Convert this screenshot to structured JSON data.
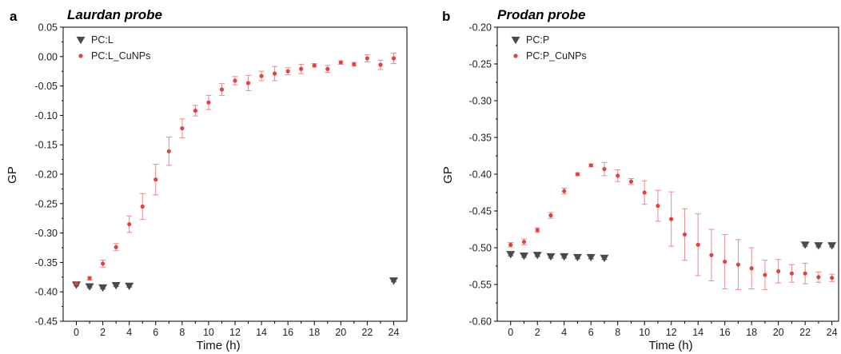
{
  "colors": {
    "pc_series": "#4a4a4a",
    "cunps_series": "#e04343",
    "cunps_error": "#e88a8a",
    "axis": "#000000"
  },
  "chart_data": [
    {
      "type": "scatter",
      "panel_letter": "a",
      "title": "Laurdan probe",
      "xlabel": "Time (h)",
      "ylabel": "GP",
      "xlim": [
        -1,
        25
      ],
      "ylim": [
        -0.45,
        0.05
      ],
      "xticks": [
        0,
        2,
        4,
        6,
        8,
        10,
        12,
        14,
        16,
        18,
        20,
        22,
        24
      ],
      "yticks": [
        0.05,
        0.0,
        -0.05,
        -0.1,
        -0.15,
        -0.2,
        -0.25,
        -0.3,
        -0.35,
        -0.4,
        -0.45
      ],
      "ytick_labels": [
        "0.05",
        "0.00",
        "-0.05",
        "-0.10",
        "-0.15",
        "-0.20",
        "-0.25",
        "-0.30",
        "-0.35",
        "-0.40",
        "-0.45"
      ],
      "legend_position": "top-left",
      "series": [
        {
          "name": "PC:L",
          "marker": "triangle-down",
          "x": [
            0,
            1,
            2,
            3,
            4,
            24
          ],
          "y": [
            -0.388,
            -0.391,
            -0.393,
            -0.389,
            -0.39,
            -0.381
          ],
          "err": [
            0.002,
            0.002,
            0.002,
            0.002,
            0.002,
            0.002
          ]
        },
        {
          "name": "PC:L_CuNPs",
          "marker": "circle",
          "x": [
            0,
            1,
            2,
            3,
            4,
            5,
            6,
            7,
            8,
            9,
            10,
            11,
            12,
            13,
            14,
            15,
            16,
            17,
            18,
            19,
            20,
            21,
            22,
            23,
            24
          ],
          "y": [
            -0.386,
            -0.377,
            -0.352,
            -0.324,
            -0.285,
            -0.255,
            -0.209,
            -0.161,
            -0.122,
            -0.092,
            -0.078,
            -0.056,
            -0.041,
            -0.045,
            -0.033,
            -0.029,
            -0.025,
            -0.021,
            -0.015,
            -0.021,
            -0.01,
            -0.013,
            -0.003,
            -0.014,
            -0.003
          ],
          "err": [
            0.003,
            0.003,
            0.006,
            0.006,
            0.014,
            0.022,
            0.026,
            0.024,
            0.016,
            0.009,
            0.012,
            0.01,
            0.007,
            0.013,
            0.008,
            0.012,
            0.006,
            0.008,
            0.003,
            0.006,
            0.003,
            0.003,
            0.006,
            0.008,
            0.009
          ]
        }
      ]
    },
    {
      "type": "scatter",
      "panel_letter": "b",
      "title": "Prodan probe",
      "xlabel": "Time (h)",
      "ylabel": "GP",
      "xlim": [
        -1,
        24.5
      ],
      "ylim": [
        -0.6,
        -0.2
      ],
      "xticks": [
        0,
        2,
        4,
        6,
        8,
        10,
        12,
        14,
        16,
        18,
        20,
        22,
        24
      ],
      "yticks": [
        -0.2,
        -0.25,
        -0.3,
        -0.35,
        -0.4,
        -0.45,
        -0.5,
        -0.55,
        -0.6
      ],
      "ytick_labels": [
        "-0.20",
        "-0.25",
        "-0.30",
        "-0.35",
        "-0.40",
        "-0.45",
        "-0.50",
        "-0.55",
        "-0.60"
      ],
      "legend_position": "top-left",
      "series": [
        {
          "name": "PC:P",
          "marker": "triangle-down",
          "x": [
            0,
            1,
            2,
            3,
            4,
            5,
            6,
            7,
            22,
            23,
            24
          ],
          "y": [
            -0.509,
            -0.511,
            -0.51,
            -0.512,
            -0.512,
            -0.513,
            -0.513,
            -0.514,
            -0.496,
            -0.497,
            -0.497
          ],
          "err": [
            0.002,
            0.002,
            0.002,
            0.002,
            0.002,
            0.002,
            0.002,
            0.002,
            0.002,
            0.002,
            0.002
          ]
        },
        {
          "name": "PC:P_CuNPs",
          "marker": "circle",
          "x": [
            0,
            1,
            2,
            3,
            4,
            5,
            6,
            7,
            8,
            9,
            10,
            11,
            12,
            13,
            14,
            15,
            16,
            17,
            18,
            19,
            20,
            21,
            22,
            23,
            24
          ],
          "y": [
            -0.496,
            -0.492,
            -0.476,
            -0.456,
            -0.423,
            -0.4,
            -0.388,
            -0.393,
            -0.402,
            -0.41,
            -0.425,
            -0.443,
            -0.461,
            -0.482,
            -0.496,
            -0.51,
            -0.519,
            -0.523,
            -0.528,
            -0.537,
            -0.532,
            -0.535,
            -0.535,
            -0.54,
            -0.541
          ],
          "err": [
            0.003,
            0.004,
            0.003,
            0.004,
            0.004,
            0.002,
            0.002,
            0.009,
            0.008,
            0.004,
            0.016,
            0.021,
            0.037,
            0.035,
            0.042,
            0.035,
            0.037,
            0.034,
            0.028,
            0.02,
            0.016,
            0.012,
            0.014,
            0.007,
            0.005
          ]
        }
      ]
    }
  ]
}
